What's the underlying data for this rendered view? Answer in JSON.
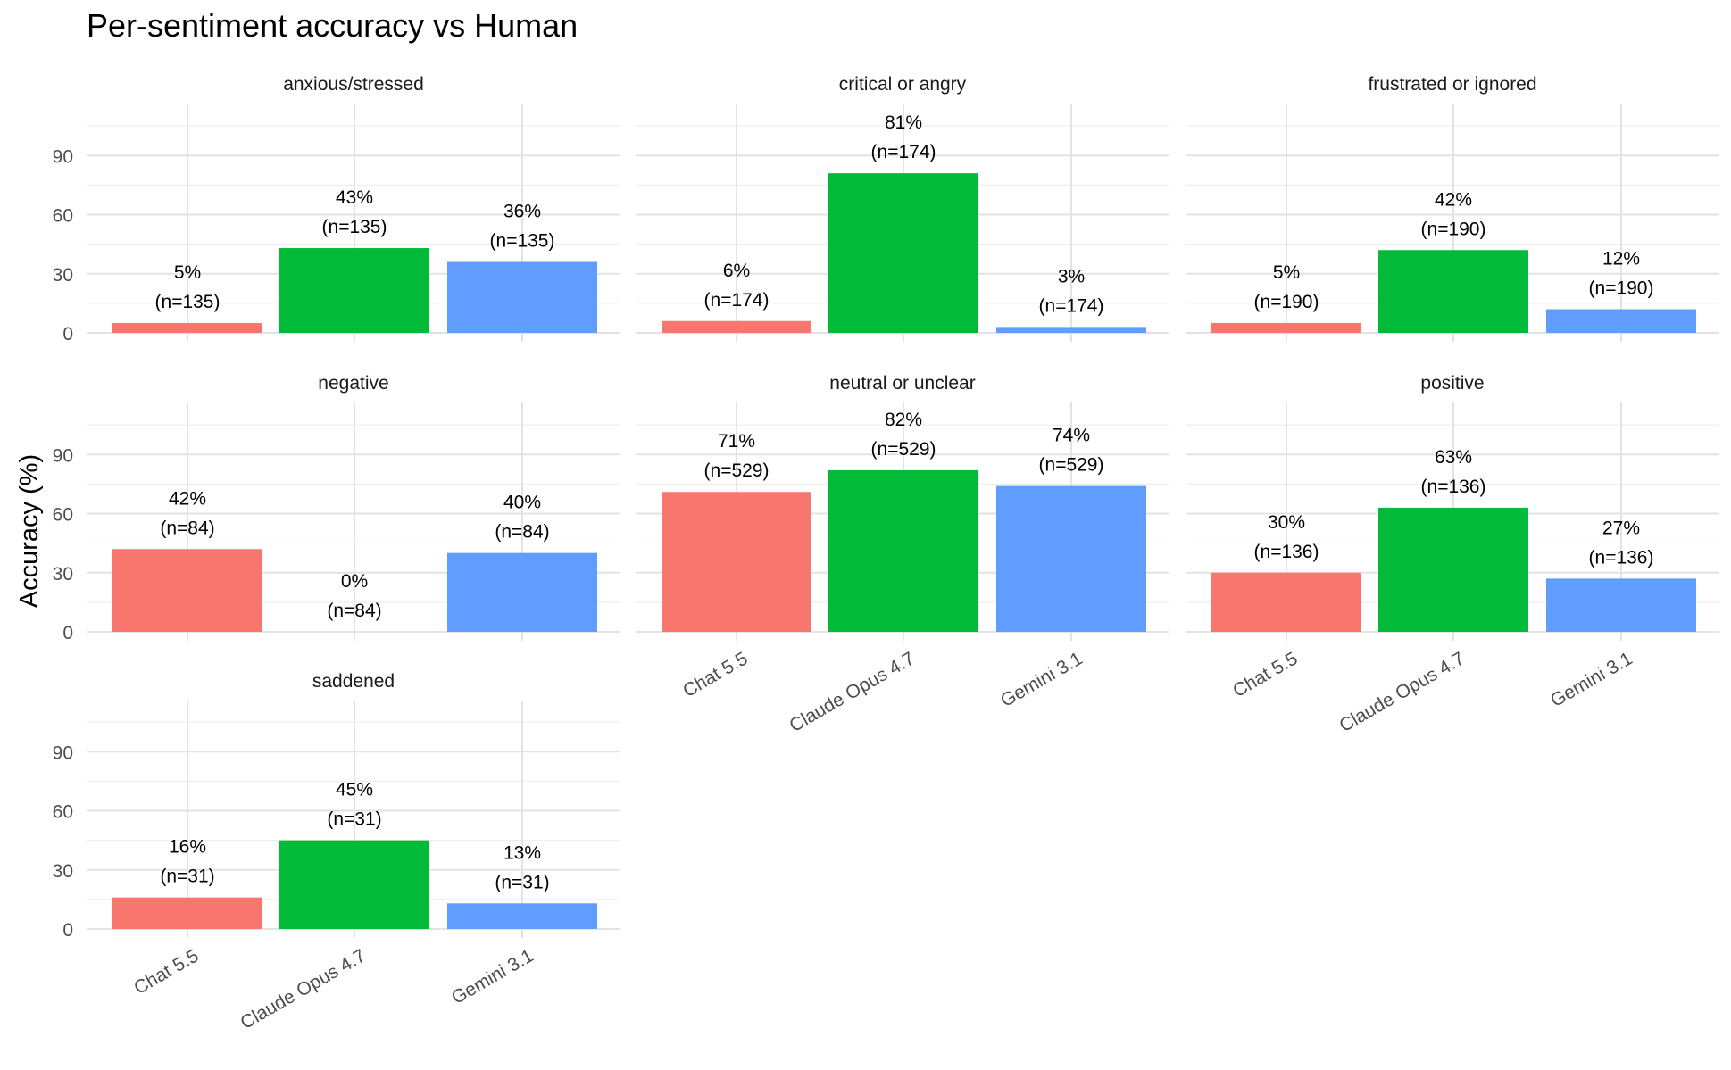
{
  "chart_data": {
    "type": "bar",
    "title": "Per-sentiment accuracy vs Human",
    "xlabel": "",
    "ylabel": "Accuracy (%)",
    "ylim": [
      0,
      115
    ],
    "yticks": [
      0,
      30,
      60,
      90
    ],
    "grid": true,
    "legend": "none",
    "categories": [
      "Chat 5.5",
      "Claude Opus 4.7",
      "Gemini 3.1"
    ],
    "colors": [
      "#F8766D",
      "#00BA38",
      "#619CFF"
    ],
    "panels": [
      {
        "name": "anxious/stressed",
        "values": [
          5,
          43,
          36
        ],
        "labels": [
          "5%",
          "43%",
          "36%"
        ],
        "counts": [
          "(n=135)",
          "(n=135)",
          "(n=135)"
        ]
      },
      {
        "name": "critical or angry",
        "values": [
          6,
          81,
          3
        ],
        "labels": [
          "6%",
          "81%",
          "3%"
        ],
        "counts": [
          "(n=174)",
          "(n=174)",
          "(n=174)"
        ]
      },
      {
        "name": "frustrated or ignored",
        "values": [
          5,
          42,
          12
        ],
        "labels": [
          "5%",
          "42%",
          "12%"
        ],
        "counts": [
          "(n=190)",
          "(n=190)",
          "(n=190)"
        ]
      },
      {
        "name": "negative",
        "values": [
          42,
          0,
          40
        ],
        "labels": [
          "42%",
          "0%",
          "40%"
        ],
        "counts": [
          "(n=84)",
          "(n=84)",
          "(n=84)"
        ]
      },
      {
        "name": "neutral or unclear",
        "values": [
          71,
          82,
          74
        ],
        "labels": [
          "71%",
          "82%",
          "74%"
        ],
        "counts": [
          "(n=529)",
          "(n=529)",
          "(n=529)"
        ]
      },
      {
        "name": "positive",
        "values": [
          30,
          63,
          27
        ],
        "labels": [
          "30%",
          "63%",
          "27%"
        ],
        "counts": [
          "(n=136)",
          "(n=136)",
          "(n=136)"
        ]
      },
      {
        "name": "saddened",
        "values": [
          16,
          45,
          13
        ],
        "labels": [
          "16%",
          "45%",
          "13%"
        ],
        "counts": [
          "(n=31)",
          "(n=31)",
          "(n=31)"
        ]
      }
    ]
  }
}
